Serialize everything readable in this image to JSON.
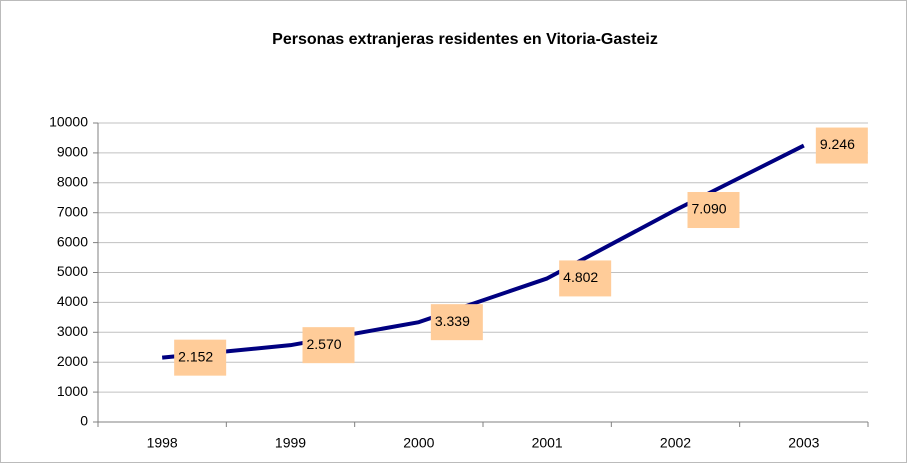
{
  "chart_data": {
    "type": "line",
    "title": "Personas extranjeras residentes en Vitoria-Gasteiz",
    "categories": [
      "1998",
      "1999",
      "2000",
      "2001",
      "2002",
      "2003"
    ],
    "values": [
      2152,
      2570,
      3339,
      4802,
      7090,
      9246
    ],
    "value_labels": [
      "2.152",
      "2.570",
      "3.339",
      "4.802",
      "7.090",
      "9.246"
    ],
    "color": "#000080",
    "label_color": "#FFCC99",
    "ylim": [
      0,
      10000
    ],
    "yticks": [
      0,
      1000,
      2000,
      3000,
      4000,
      5000,
      6000,
      7000,
      8000,
      9000,
      10000
    ],
    "grid": true
  }
}
